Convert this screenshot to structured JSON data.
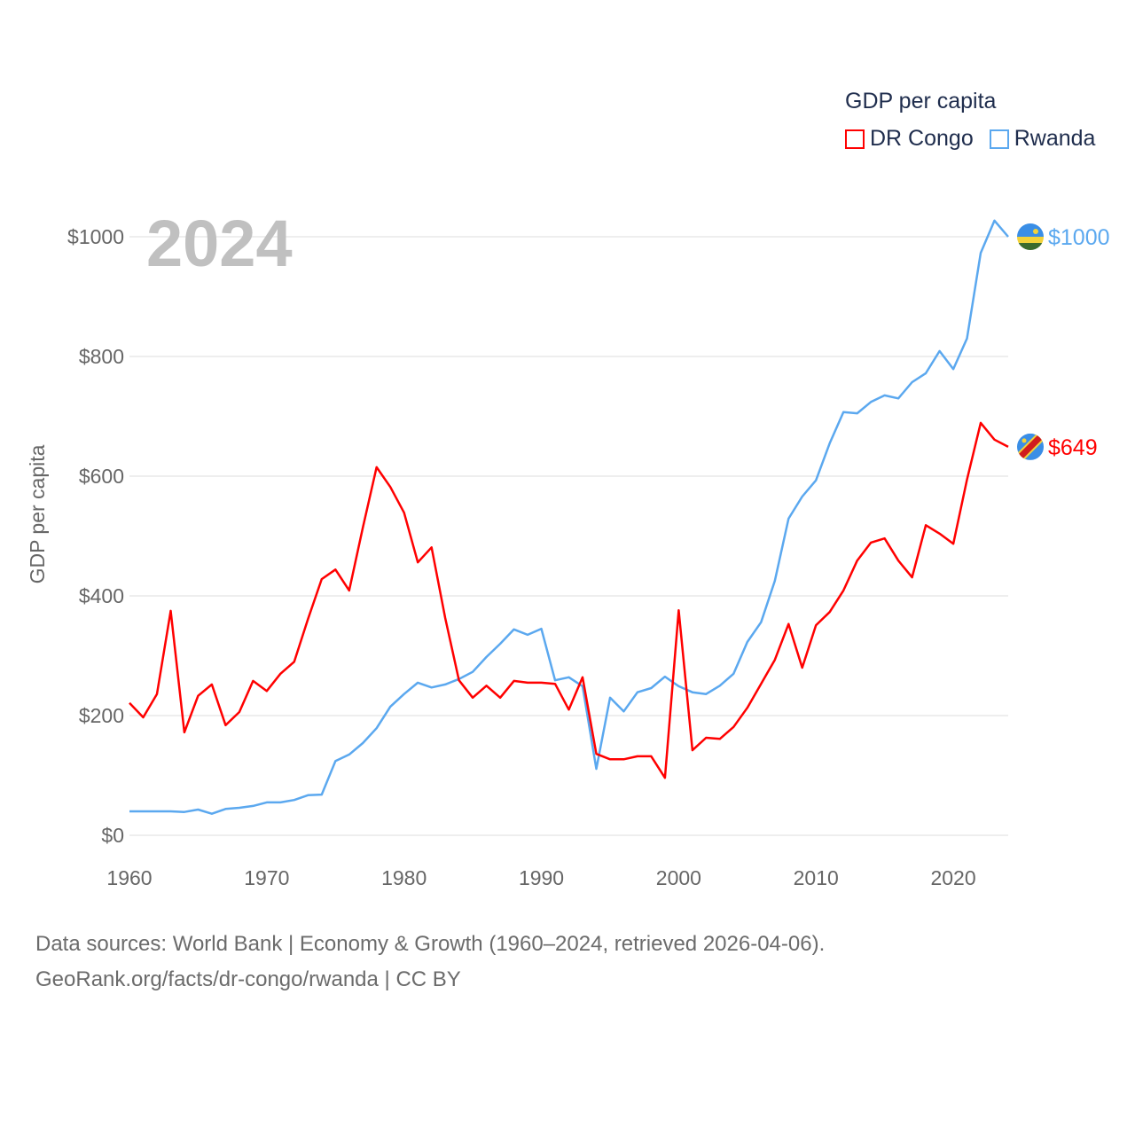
{
  "legend": {
    "title": "GDP per capita"
  },
  "footer": {
    "line1": "Data sources: World Bank | Economy & Growth (1960–2024, retrieved 2026-04-06).",
    "line2": "GeoRank.org/facts/dr-congo/rwanda | CC BY"
  },
  "chart_data": {
    "type": "line",
    "title": "2024",
    "xlabel": "",
    "ylabel": "GDP per capita",
    "xlim": [
      1960,
      2024
    ],
    "ylim": [
      0,
      1000
    ],
    "xticks": [
      1960,
      1970,
      1980,
      1990,
      2000,
      2010,
      2020
    ],
    "yticks": [
      0,
      200,
      400,
      600,
      800,
      1000
    ],
    "ytick_labels": [
      "$0",
      "$200",
      "$400",
      "$600",
      "$800",
      "$1000"
    ],
    "grid": true,
    "legend_position": "top-right",
    "x_start": 1960,
    "series": [
      {
        "name": "DR Congo",
        "color": "#ff0000",
        "end_label": "$649",
        "flag": "dr-congo-flag-icon",
        "values": [
          221,
          197,
          236,
          375,
          172,
          233,
          252,
          184,
          206,
          258,
          241,
          270,
          290,
          361,
          428,
          444,
          409,
          514,
          615,
          582,
          539,
          456,
          481,
          363,
          259,
          230,
          250,
          230,
          258,
          255,
          255,
          253,
          210,
          264,
          136,
          127,
          127,
          132,
          132,
          96,
          376,
          142,
          163,
          161,
          181,
          213,
          253,
          293,
          353,
          280,
          351,
          373,
          409,
          459,
          489,
          496,
          459,
          431,
          518,
          504,
          487,
          594,
          689,
          661,
          649
        ]
      },
      {
        "name": "Rwanda",
        "color": "#5ba8ef",
        "end_label": "$1000",
        "flag": "rwanda-flag-icon",
        "values": [
          40,
          40,
          40,
          40,
          39,
          43,
          36,
          44,
          46,
          49,
          55,
          55,
          59,
          67,
          68,
          124,
          135,
          154,
          179,
          215,
          236,
          255,
          247,
          252,
          261,
          273,
          298,
          320,
          344,
          335,
          345,
          259,
          264,
          249,
          111,
          230,
          207,
          239,
          246,
          265,
          249,
          239,
          236,
          250,
          270,
          323,
          356,
          425,
          529,
          566,
          593,
          655,
          707,
          705,
          724,
          735,
          730,
          757,
          772,
          809,
          779,
          830,
          973,
          1027,
          1000
        ]
      }
    ]
  }
}
